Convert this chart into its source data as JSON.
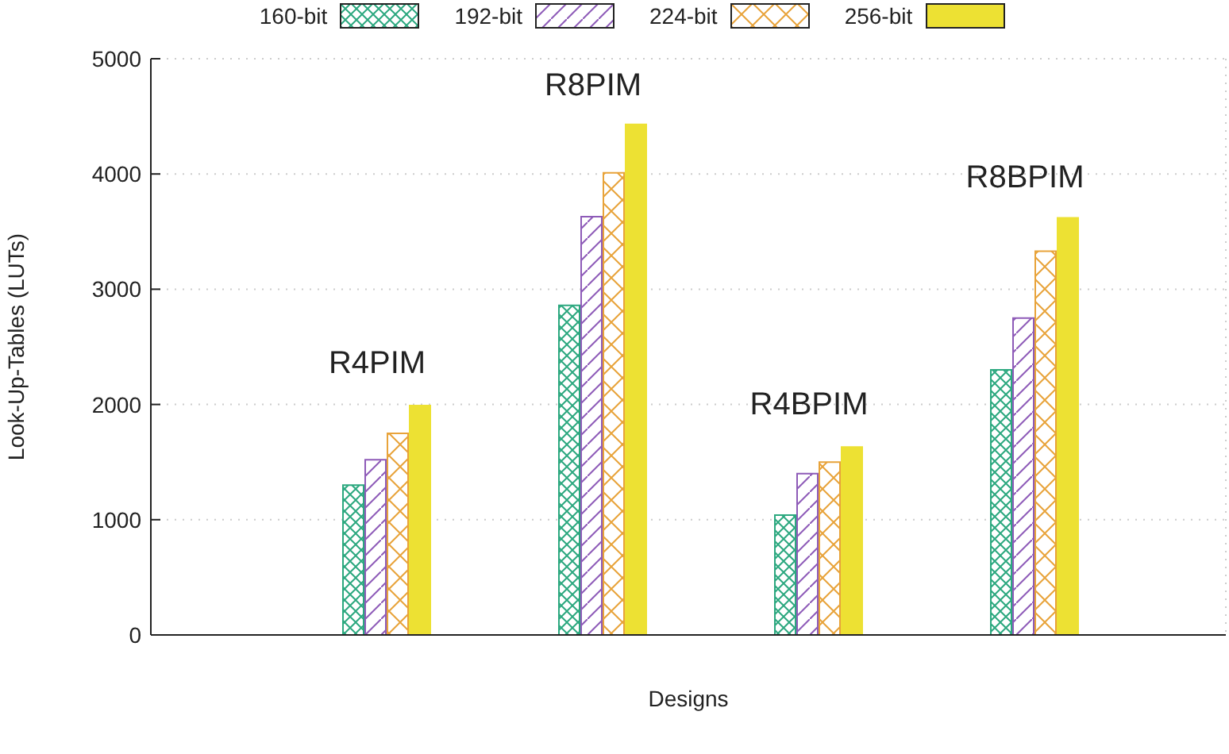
{
  "chart_data": {
    "type": "bar",
    "xlabel": "Designs",
    "ylabel": "Look-Up-Tables (LUTs)",
    "categories": [
      "R4PIM",
      "R8PIM",
      "R4BPIM",
      "R8BPIM"
    ],
    "series": [
      {
        "name": "160-bit",
        "color": "#2ca87f",
        "values": [
          1300,
          2860,
          1040,
          2300
        ]
      },
      {
        "name": "192-bit",
        "color": "#8e5bb8",
        "values": [
          1520,
          3630,
          1400,
          2750
        ]
      },
      {
        "name": "224-bit",
        "color": "#e8a33a",
        "values": [
          1750,
          4010,
          1500,
          3330
        ]
      },
      {
        "name": "256-bit",
        "color": "#ede133",
        "values": [
          1990,
          4430,
          1630,
          3620
        ]
      }
    ],
    "ylim": [
      0,
      5000
    ],
    "yticks": [
      0,
      1000,
      2000,
      3000,
      4000,
      5000
    ],
    "grid": true,
    "legend": "top"
  }
}
